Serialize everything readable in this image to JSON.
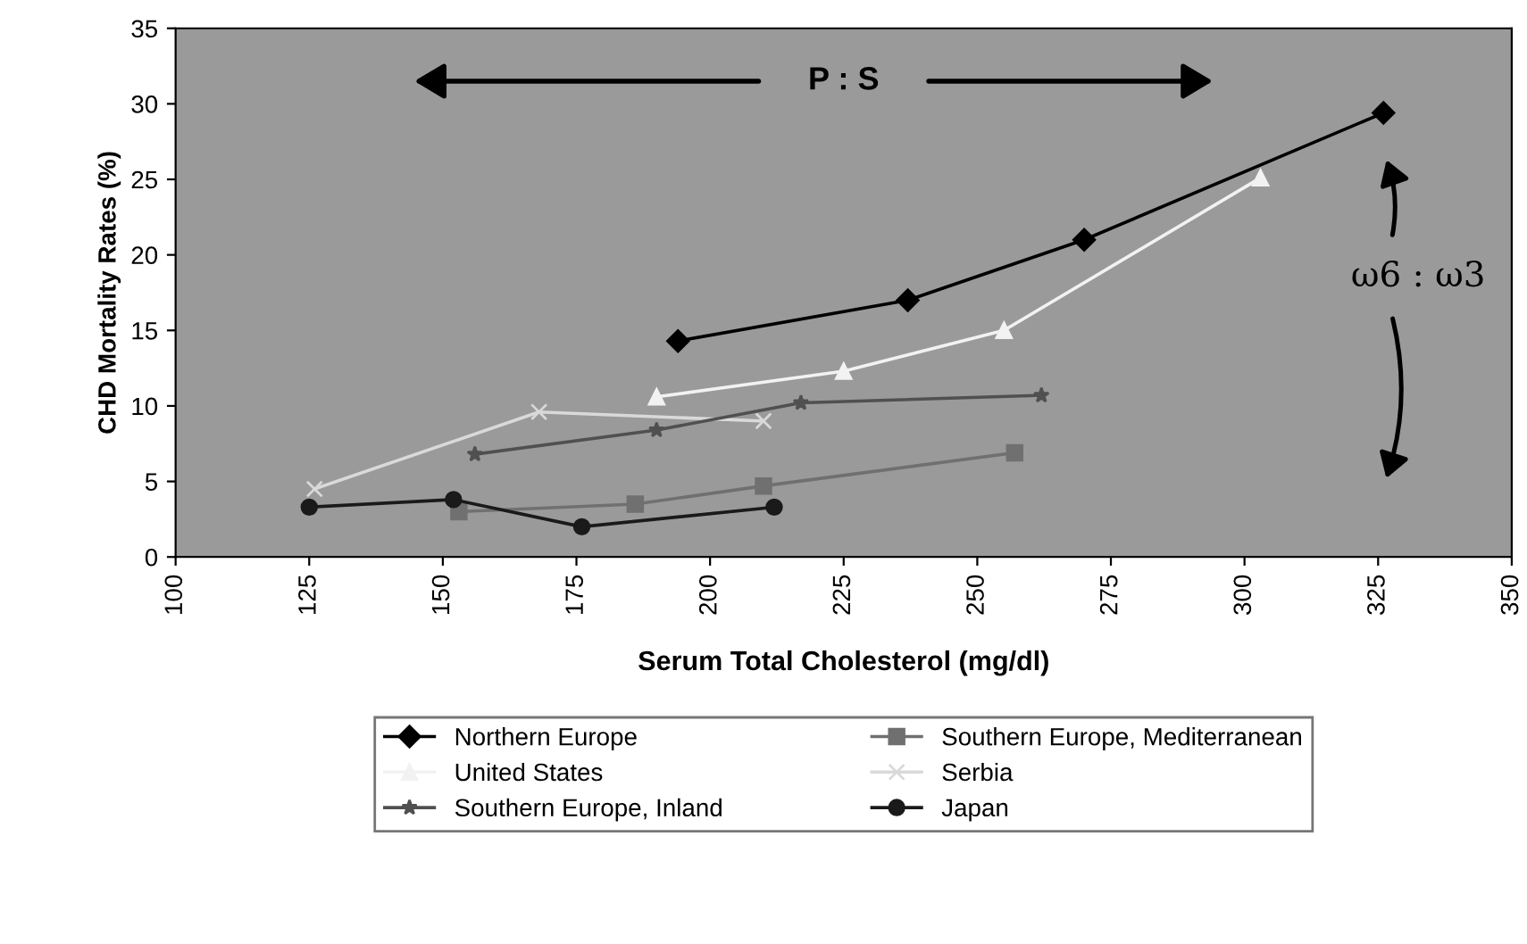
{
  "chart_data": {
    "type": "line",
    "xlabel": "Serum Total Cholesterol (mg/dl)",
    "ylabel": "CHD Mortality Rates (%)",
    "xlim": [
      100,
      350
    ],
    "xticks": [
      100,
      125,
      150,
      175,
      200,
      225,
      250,
      275,
      300,
      325,
      350
    ],
    "ylim": [
      0,
      35
    ],
    "yticks": [
      0,
      5,
      10,
      15,
      20,
      25,
      30,
      35
    ],
    "grid": false,
    "legend": "bottom",
    "annotations": [
      "P : S",
      "ω6 : ω3"
    ],
    "series": [
      {
        "name": "Northern Europe",
        "color": "#000000",
        "marker": "diamond",
        "x": [
          194,
          237,
          270,
          326
        ],
        "values": [
          14.3,
          17.0,
          21.0,
          29.4
        ]
      },
      {
        "name": "Southern Europe, Mediterranean",
        "color": "#707070",
        "marker": "square",
        "x": [
          153,
          186,
          210,
          257
        ],
        "values": [
          3.0,
          3.5,
          4.7,
          6.9
        ]
      },
      {
        "name": "United States",
        "color": "#f2f2f2",
        "marker": "triangle",
        "x": [
          190,
          225,
          255,
          303
        ],
        "values": [
          10.6,
          12.3,
          15.0,
          25.1
        ]
      },
      {
        "name": "Serbia",
        "color": "#d9d9d9",
        "marker": "cross",
        "x": [
          126,
          168,
          210
        ],
        "values": [
          4.5,
          9.6,
          9.0
        ]
      },
      {
        "name": "Southern Europe, Inland",
        "color": "#505050",
        "marker": "star",
        "x": [
          156,
          190,
          217,
          262
        ],
        "values": [
          6.8,
          8.4,
          10.2,
          10.7
        ]
      },
      {
        "name": "Japan",
        "color": "#1a1a1a",
        "marker": "circle",
        "x": [
          125,
          152,
          176,
          212
        ],
        "values": [
          3.3,
          3.8,
          2.0,
          3.3
        ]
      }
    ]
  }
}
